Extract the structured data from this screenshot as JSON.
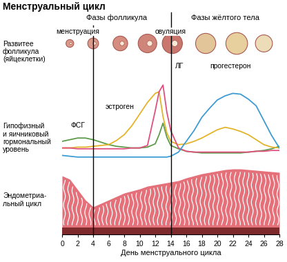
{
  "title": "Менструальный цикл",
  "phases": [
    {
      "label": "Фазы фолликула",
      "start": 0,
      "end": 14
    },
    {
      "label": "Фазы жёлтого тела",
      "start": 14,
      "end": 28
    }
  ],
  "events": [
    {
      "label": "менструация",
      "start": 0,
      "end": 4
    },
    {
      "label": "овуляция",
      "x": 14
    }
  ],
  "follicle_row": {
    "row_label": "Развитее\nфолликула\n(яйцеклетки)"
  },
  "chart_data": [
    {
      "type": "line",
      "row_label": "Гипофизный\nи яичниковый\nгормональный\nуровень",
      "x": [
        0,
        1,
        2,
        3,
        4,
        5,
        6,
        7,
        8,
        9,
        10,
        11,
        12,
        12.5,
        13,
        13.5,
        14,
        15,
        16,
        17,
        18,
        19,
        20,
        21,
        22,
        23,
        24,
        25,
        26,
        27,
        28
      ],
      "series": [
        {
          "name": "ФСГ",
          "color": "#5b9b4a",
          "values": [
            25,
            27,
            29,
            29,
            27,
            24,
            21,
            19,
            18,
            17,
            17,
            18,
            22,
            33,
            47,
            30,
            20,
            16,
            13,
            12,
            11,
            11,
            11,
            11,
            11,
            11,
            12,
            13,
            14,
            16,
            19
          ]
        },
        {
          "name": "эстроген",
          "color": "#e3b42a",
          "values": [
            17,
            17,
            18,
            18,
            19,
            20,
            21,
            26,
            33,
            44,
            58,
            72,
            83,
            85,
            55,
            35,
            25,
            21,
            22,
            25,
            29,
            34,
            39,
            42,
            40,
            37,
            33,
            27,
            21,
            18,
            17
          ]
        },
        {
          "name": "ЛГ",
          "color": "#e0507c",
          "values": [
            17,
            17,
            16,
            16,
            16,
            16,
            16,
            16,
            16,
            17,
            17,
            20,
            62,
            85,
            93,
            60,
            38,
            17,
            13,
            12,
            12,
            12,
            12,
            12,
            12,
            12,
            12,
            13,
            13,
            14,
            14
          ]
        },
        {
          "name": "прогестерон",
          "color": "#3d9bd3",
          "values": [
            8,
            7,
            6,
            6,
            6,
            6,
            6,
            6,
            6,
            6,
            6,
            6,
            6,
            6,
            6,
            6,
            7,
            12,
            25,
            38,
            54,
            65,
            75,
            80,
            83,
            82,
            76,
            68,
            50,
            32,
            17
          ]
        }
      ],
      "xlim": [
        0,
        28
      ],
      "ylim": [
        0,
        120
      ],
      "tick_labels": false
    },
    {
      "type": "area",
      "row_label": "Эндометриа-\nльный цикл",
      "x": [
        0,
        1,
        2,
        3,
        4,
        5,
        6,
        7,
        8,
        9,
        10,
        11,
        12,
        13,
        14,
        15,
        16,
        17,
        18,
        19,
        20,
        21,
        22,
        23,
        24,
        25,
        26,
        27,
        28
      ],
      "values": [
        85,
        80,
        65,
        50,
        40,
        45,
        50,
        55,
        60,
        63,
        66,
        70,
        72,
        74,
        76,
        78,
        82,
        85,
        88,
        90,
        92,
        94,
        95,
        95,
        94,
        93,
        92,
        91,
        90
      ],
      "color": "#e4707a",
      "xlim": [
        0,
        28
      ],
      "ylim": [
        0,
        100
      ],
      "xticks": [
        0,
        2,
        4,
        6,
        8,
        10,
        12,
        14,
        16,
        18,
        20,
        22,
        24,
        26,
        28
      ],
      "xlabel": "День менструального цикла",
      "tick_labels": "x"
    }
  ]
}
